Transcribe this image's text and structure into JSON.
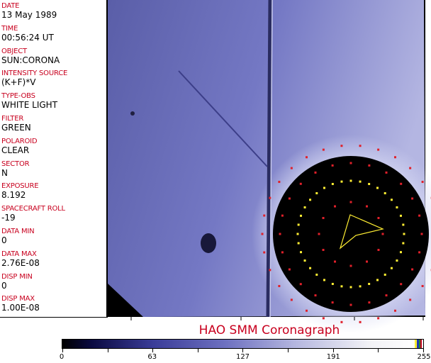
{
  "fields": [
    {
      "label": "DATE",
      "value": "13 May 1989"
    },
    {
      "label": "TIME",
      "value": "00:56:24 UT"
    },
    {
      "label": "OBJECT",
      "value": "SUN:CORONA"
    },
    {
      "label": "INTENSITY SOURCE",
      "value": "(K+F)*V"
    },
    {
      "label": "TYPE-OBS",
      "value": "WHITE LIGHT"
    },
    {
      "label": "FILTER",
      "value": "GREEN"
    },
    {
      "label": "POLAROID",
      "value": "CLEAR"
    },
    {
      "label": "SECTOR",
      "value": "N"
    },
    {
      "label": "EXPOSURE",
      "value": "8.192"
    },
    {
      "label": "SPACECRAFT ROLL",
      "value": "-19"
    },
    {
      "label": "DATA MIN",
      "value": "0"
    },
    {
      "label": "DATA MAX",
      "value": "2.76E-08"
    },
    {
      "label": "DISP MIN",
      "value": "0"
    },
    {
      "label": "DISP MAX",
      "value": "1.00E-08"
    }
  ],
  "title": "HAO  SMM Coronagraph",
  "colorbar": {
    "ticks": [
      "0",
      "63",
      "127",
      "191",
      "255"
    ],
    "range": [
      0,
      255
    ]
  },
  "colors": {
    "label": "#c8001e",
    "marker_red": "#e0202a",
    "marker_yellow": "#ffee33"
  }
}
